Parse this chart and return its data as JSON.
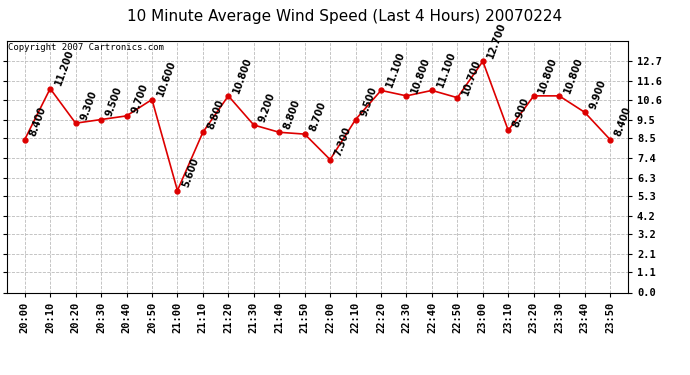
{
  "title": "10 Minute Average Wind Speed (Last 4 Hours) 20070224",
  "copyright": "Copyright 2007 Cartronics.com",
  "x_labels": [
    "20:00",
    "20:10",
    "20:20",
    "20:30",
    "20:40",
    "20:50",
    "21:00",
    "21:10",
    "21:20",
    "21:30",
    "21:40",
    "21:50",
    "22:00",
    "22:10",
    "22:20",
    "22:30",
    "22:40",
    "22:50",
    "23:00",
    "23:10",
    "23:20",
    "23:30",
    "23:40",
    "23:50"
  ],
  "y_values": [
    8.4,
    11.2,
    9.3,
    9.5,
    9.7,
    10.6,
    5.6,
    8.8,
    10.8,
    9.2,
    8.8,
    8.7,
    7.3,
    9.5,
    11.1,
    10.8,
    11.1,
    10.7,
    12.7,
    8.9,
    10.8,
    10.8,
    9.9,
    8.4
  ],
  "y_labels": [
    0.0,
    1.1,
    2.1,
    3.2,
    4.2,
    5.3,
    6.3,
    7.4,
    8.5,
    9.5,
    10.6,
    11.6,
    12.7
  ],
  "ylim": [
    0.0,
    13.8
  ],
  "line_color": "#dd0000",
  "marker_color": "#dd0000",
  "bg_color": "#ffffff",
  "plot_bg_color": "#ffffff",
  "grid_color": "#bbbbbb",
  "title_fontsize": 11,
  "annotation_fontsize": 7,
  "tick_fontsize": 7.5,
  "copyright_fontsize": 6.5
}
